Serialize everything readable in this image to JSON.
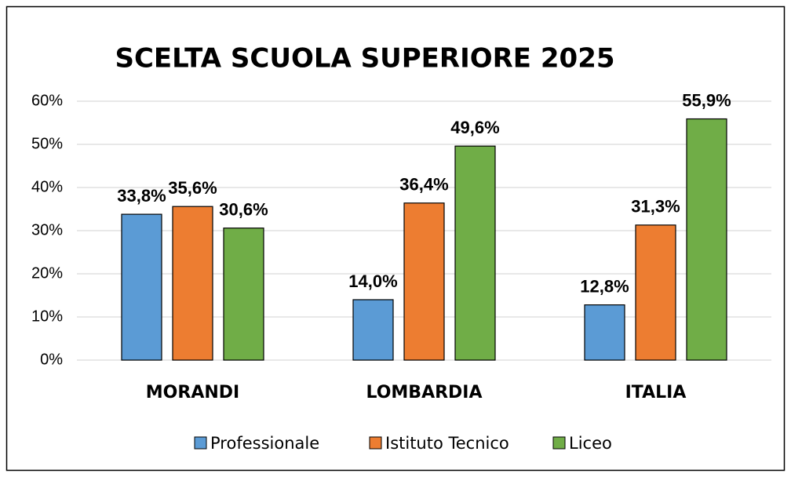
{
  "chart_data": {
    "type": "bar",
    "title": "SCELTA SCUOLA SUPERIORE 2025",
    "categories": [
      "MORANDI",
      "LOMBARDIA",
      "ITALIA"
    ],
    "series": [
      {
        "name": "Professionale",
        "color": "#5b9bd5",
        "values": [
          33.8,
          14.0,
          12.8
        ],
        "value_labels": [
          "33,8%",
          "14,0%",
          "12,8%"
        ]
      },
      {
        "name": "Istituto Tecnico",
        "color": "#ed7d31",
        "values": [
          35.6,
          36.4,
          31.3
        ],
        "value_labels": [
          "35,6%",
          "36,4%",
          "31,3%"
        ]
      },
      {
        "name": "Liceo",
        "color": "#70ad47",
        "values": [
          30.6,
          49.6,
          55.9
        ],
        "value_labels": [
          "30,6%",
          "49,6%",
          "55,9%"
        ]
      }
    ],
    "ylim": [
      0,
      60
    ],
    "yticks": [
      {
        "value": 0,
        "label": "0%"
      },
      {
        "value": 10,
        "label": "10%"
      },
      {
        "value": 20,
        "label": "20%"
      },
      {
        "value": 30,
        "label": "30%"
      },
      {
        "value": 40,
        "label": "40%"
      },
      {
        "value": 50,
        "label": "50%"
      },
      {
        "value": 60,
        "label": "60%"
      }
    ],
    "grid": true,
    "legend": "bottom"
  }
}
